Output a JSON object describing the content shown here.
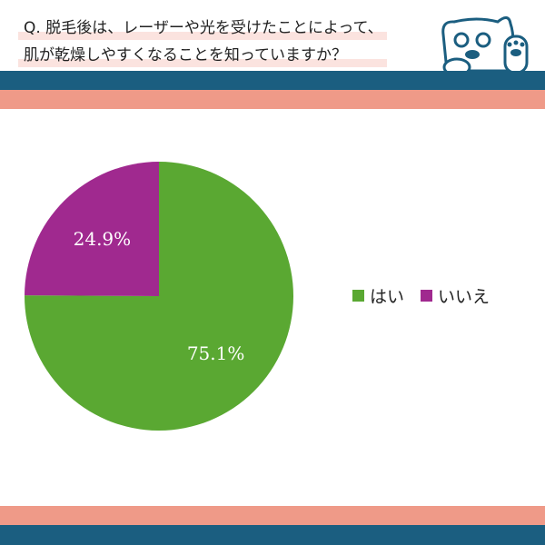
{
  "question": {
    "line1": "Q. 脱毛後は、レーザーや光を受けたことによって、",
    "line2": "肌が乾燥しやすくなることを知っていますか？"
  },
  "colors": {
    "band_blue": "#1b5e80",
    "band_salmon": "#ef9a88",
    "highlight": "#fbe3df"
  },
  "chart_data": {
    "type": "pie",
    "categories": [
      "はい",
      "いいえ"
    ],
    "values": [
      75.1,
      24.9
    ],
    "labels": [
      "75.1%",
      "24.9%"
    ],
    "colors": [
      "#5aa832",
      "#a0298f"
    ],
    "start": "12 o'clock, clockwise",
    "legend": "right"
  }
}
